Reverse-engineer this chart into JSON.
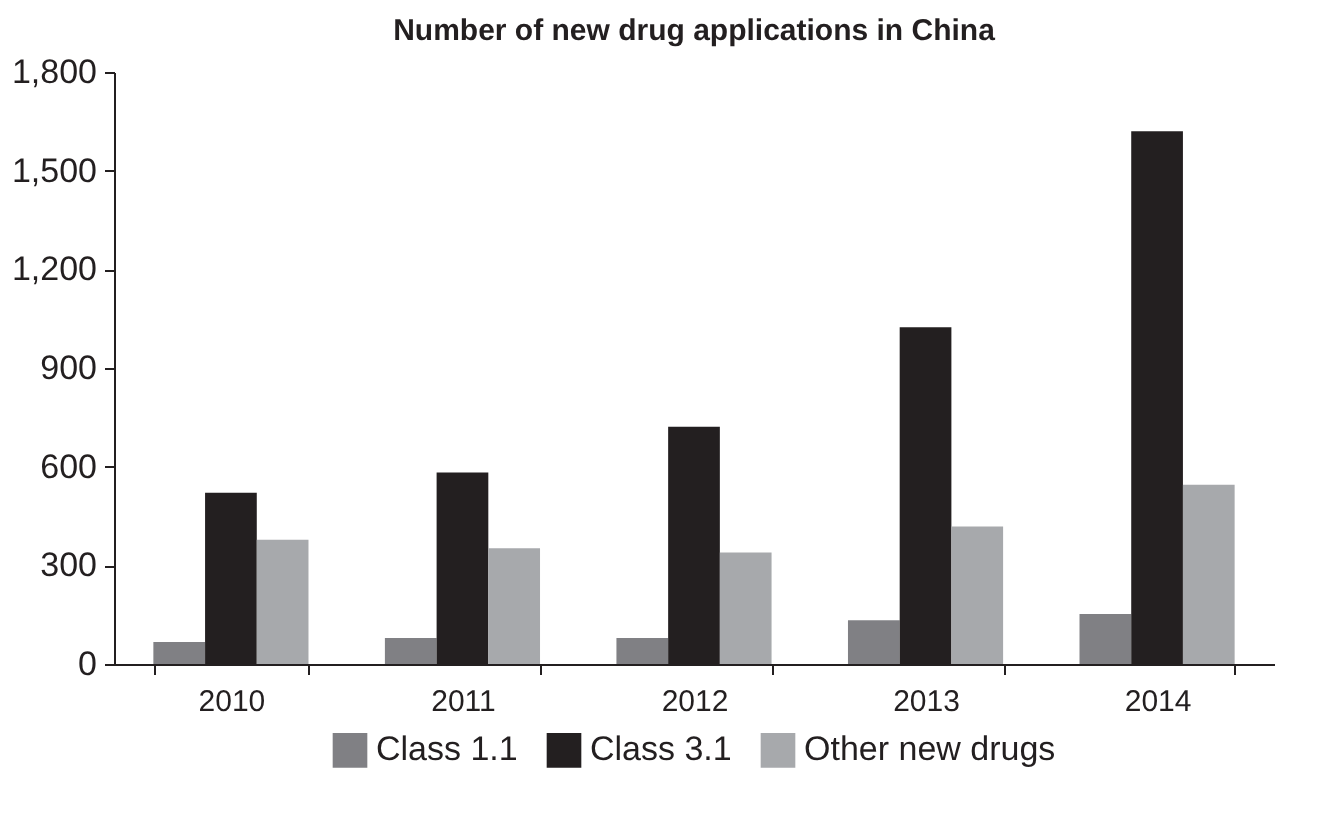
{
  "chart_data": {
    "type": "bar",
    "title": "Number of new drug applications in China",
    "categories": [
      "2010",
      "2011",
      "2012",
      "2013",
      "2014"
    ],
    "series": [
      {
        "name": "Class 1.1",
        "color": "#808084",
        "values": [
          67,
          79,
          79,
          133,
          152
        ]
      },
      {
        "name": "Class 3.1",
        "color": "#231f20",
        "values": [
          521,
          582,
          721,
          1024,
          1620
        ]
      },
      {
        "name": "Other new drugs",
        "color": "#a7a9ac",
        "values": [
          378,
          352,
          339,
          418,
          545
        ]
      }
    ],
    "ylim": [
      0,
      1800
    ],
    "yticks": [
      0,
      300,
      600,
      900,
      {
        "value": 1200,
        "label": "1,200"
      },
      {
        "value": 1500,
        "label": "1,500"
      },
      {
        "value": 1800,
        "label": "1,800"
      }
    ],
    "grid": false,
    "legend": "bottom"
  }
}
